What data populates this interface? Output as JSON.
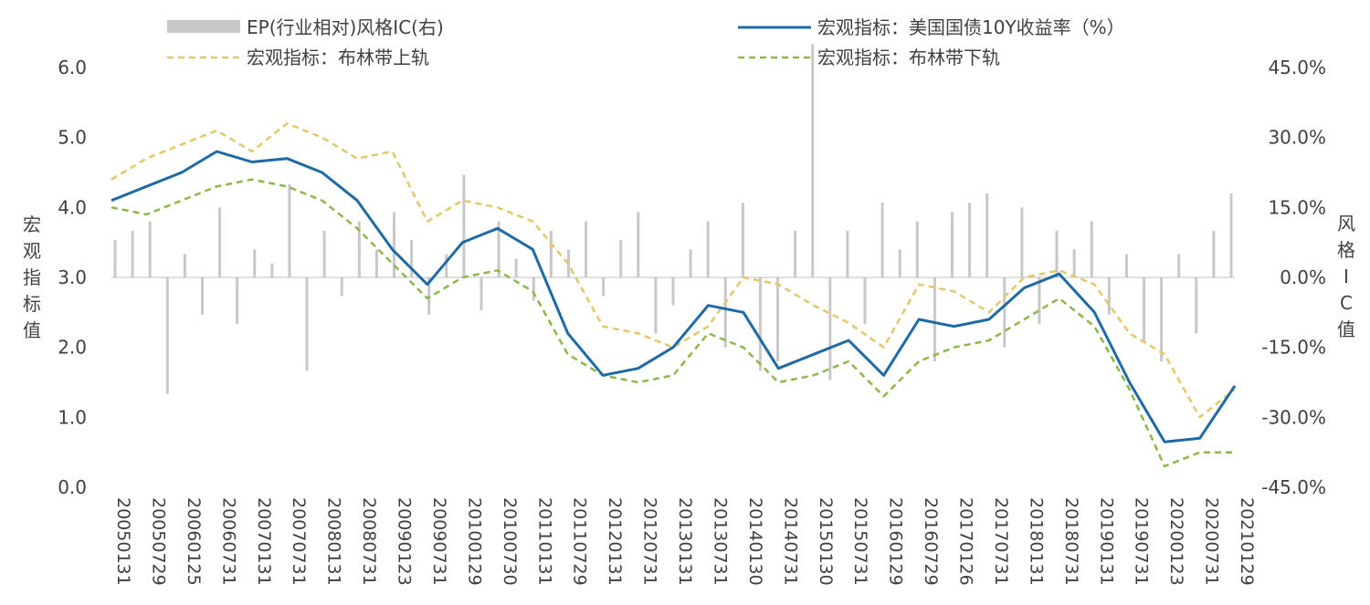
{
  "chart_data": {
    "type": "line",
    "legend": [
      {
        "label": "EP(行业相对)风格IC(右)",
        "style": "bar",
        "color": "#c8c8c8"
      },
      {
        "label": "宏观指标：美国国债10Y收益率（%）",
        "style": "solid",
        "color": "#1f6aa5"
      },
      {
        "label": "宏观指标：布林带上轨",
        "style": "dashed",
        "color": "#e3c76a"
      },
      {
        "label": "宏观指标：布林带下轨",
        "style": "dashed",
        "color": "#8cb84a"
      }
    ],
    "ylabel_left": "宏观指标值",
    "ylabel_right": "风格IC值",
    "y_left_ticks": [
      "6.0",
      "5.0",
      "4.0",
      "3.0",
      "2.0",
      "1.0",
      "0.0"
    ],
    "y_left_range": [
      0,
      6
    ],
    "y_right_ticks": [
      "45.0%",
      "30.0%",
      "15.0%",
      "0.0%",
      "-15.0%",
      "-30.0%",
      "-45.0%"
    ],
    "y_right_range": [
      -45,
      45
    ],
    "x_ticks": [
      "20050131",
      "20050729",
      "20060125",
      "20060731",
      "20070131",
      "20070731",
      "20080131",
      "20080731",
      "20090123",
      "20090731",
      "20100129",
      "20100730",
      "20110131",
      "20110729",
      "20120131",
      "20120731",
      "20130131",
      "20130731",
      "20140130",
      "20140731",
      "20150130",
      "20150731",
      "20160129",
      "20160729",
      "20170126",
      "20170731",
      "20180131",
      "20180731",
      "20190131",
      "20190731",
      "20200123",
      "20200731",
      "20210129"
    ],
    "bar_colors": {
      "neutral": "#c8c8c8",
      "positive_signal": "#c0392b",
      "negative_signal": "#22b04b"
    },
    "series": [
      {
        "name": "宏观指标：美国国债10Y收益率（%）",
        "x": [
          0,
          1,
          2,
          3,
          4,
          5,
          6,
          7,
          8,
          9,
          10,
          11,
          12,
          13,
          14,
          15,
          16,
          17,
          18,
          19,
          20,
          21,
          22,
          23,
          24,
          25,
          26,
          27,
          28,
          29,
          30,
          31,
          32
        ],
        "values": [
          4.1,
          4.3,
          4.5,
          4.8,
          4.65,
          4.7,
          4.5,
          4.1,
          3.4,
          2.9,
          3.5,
          3.7,
          3.4,
          2.2,
          1.6,
          1.7,
          2.0,
          2.6,
          2.5,
          1.7,
          1.9,
          2.1,
          1.6,
          2.4,
          2.3,
          2.4,
          2.85,
          3.05,
          2.5,
          1.5,
          0.65,
          0.7,
          1.45
        ]
      },
      {
        "name": "宏观指标：布林带上轨",
        "x": [
          0,
          1,
          2,
          3,
          4,
          5,
          6,
          7,
          8,
          9,
          10,
          11,
          12,
          13,
          14,
          15,
          16,
          17,
          18,
          19,
          20,
          21,
          22,
          23,
          24,
          25,
          26,
          27,
          28,
          29,
          30,
          31,
          32
        ],
        "values": [
          4.4,
          4.7,
          4.9,
          5.1,
          4.8,
          5.2,
          5.0,
          4.7,
          4.8,
          3.8,
          4.1,
          4.0,
          3.8,
          3.2,
          2.3,
          2.2,
          2.0,
          2.3,
          3.0,
          2.9,
          2.6,
          2.35,
          2.0,
          2.9,
          2.8,
          2.5,
          3.0,
          3.1,
          2.9,
          2.2,
          1.9,
          1.0,
          1.4
        ]
      },
      {
        "name": "宏观指标：布林带下轨",
        "x": [
          0,
          1,
          2,
          3,
          4,
          5,
          6,
          7,
          8,
          9,
          10,
          11,
          12,
          13,
          14,
          15,
          16,
          17,
          18,
          19,
          20,
          21,
          22,
          23,
          24,
          25,
          26,
          27,
          28,
          29,
          30,
          31,
          32
        ],
        "values": [
          4.0,
          3.9,
          4.1,
          4.3,
          4.4,
          4.3,
          4.1,
          3.7,
          3.2,
          2.7,
          3.0,
          3.1,
          2.8,
          1.9,
          1.6,
          1.5,
          1.6,
          2.2,
          2.0,
          1.5,
          1.6,
          1.8,
          1.3,
          1.8,
          2.0,
          2.1,
          2.4,
          2.7,
          2.3,
          1.4,
          0.3,
          0.5,
          0.5
        ]
      }
    ],
    "ic_bars": {
      "x": [
        0,
        0.5,
        1,
        1.5,
        2,
        2.5,
        3,
        3.5,
        4,
        4.5,
        5,
        5.5,
        6,
        6.5,
        7,
        7.5,
        8,
        8.5,
        9,
        9.5,
        10,
        10.5,
        11,
        11.5,
        12,
        12.5,
        13,
        13.5,
        14,
        14.5,
        15,
        15.5,
        16,
        16.5,
        17,
        17.5,
        18,
        18.5,
        19,
        19.5,
        20,
        20.5,
        21,
        21.5,
        22,
        22.5,
        23,
        23.5,
        24,
        24.5,
        25,
        25.5,
        26,
        26.5,
        27,
        27.5,
        28,
        28.5,
        29,
        29.5,
        30,
        30.5,
        31,
        31.5,
        32
      ],
      "values": [
        8,
        10,
        12,
        -25,
        5,
        -8,
        15,
        -10,
        6,
        3,
        20,
        -20,
        10,
        -4,
        12,
        6,
        14,
        8,
        -8,
        5,
        22,
        -7,
        12,
        4,
        -5,
        10,
        6,
        12,
        -4,
        8,
        14,
        -12,
        -6,
        6,
        12,
        -15,
        16,
        -20,
        -18,
        10,
        50,
        -22,
        10,
        -10,
        16,
        6,
        12,
        -18,
        14,
        16,
        18,
        -15,
        15,
        -10,
        10,
        6,
        12,
        -8,
        5,
        -14,
        -18,
        5,
        -12,
        10,
        18
      ]
    }
  }
}
